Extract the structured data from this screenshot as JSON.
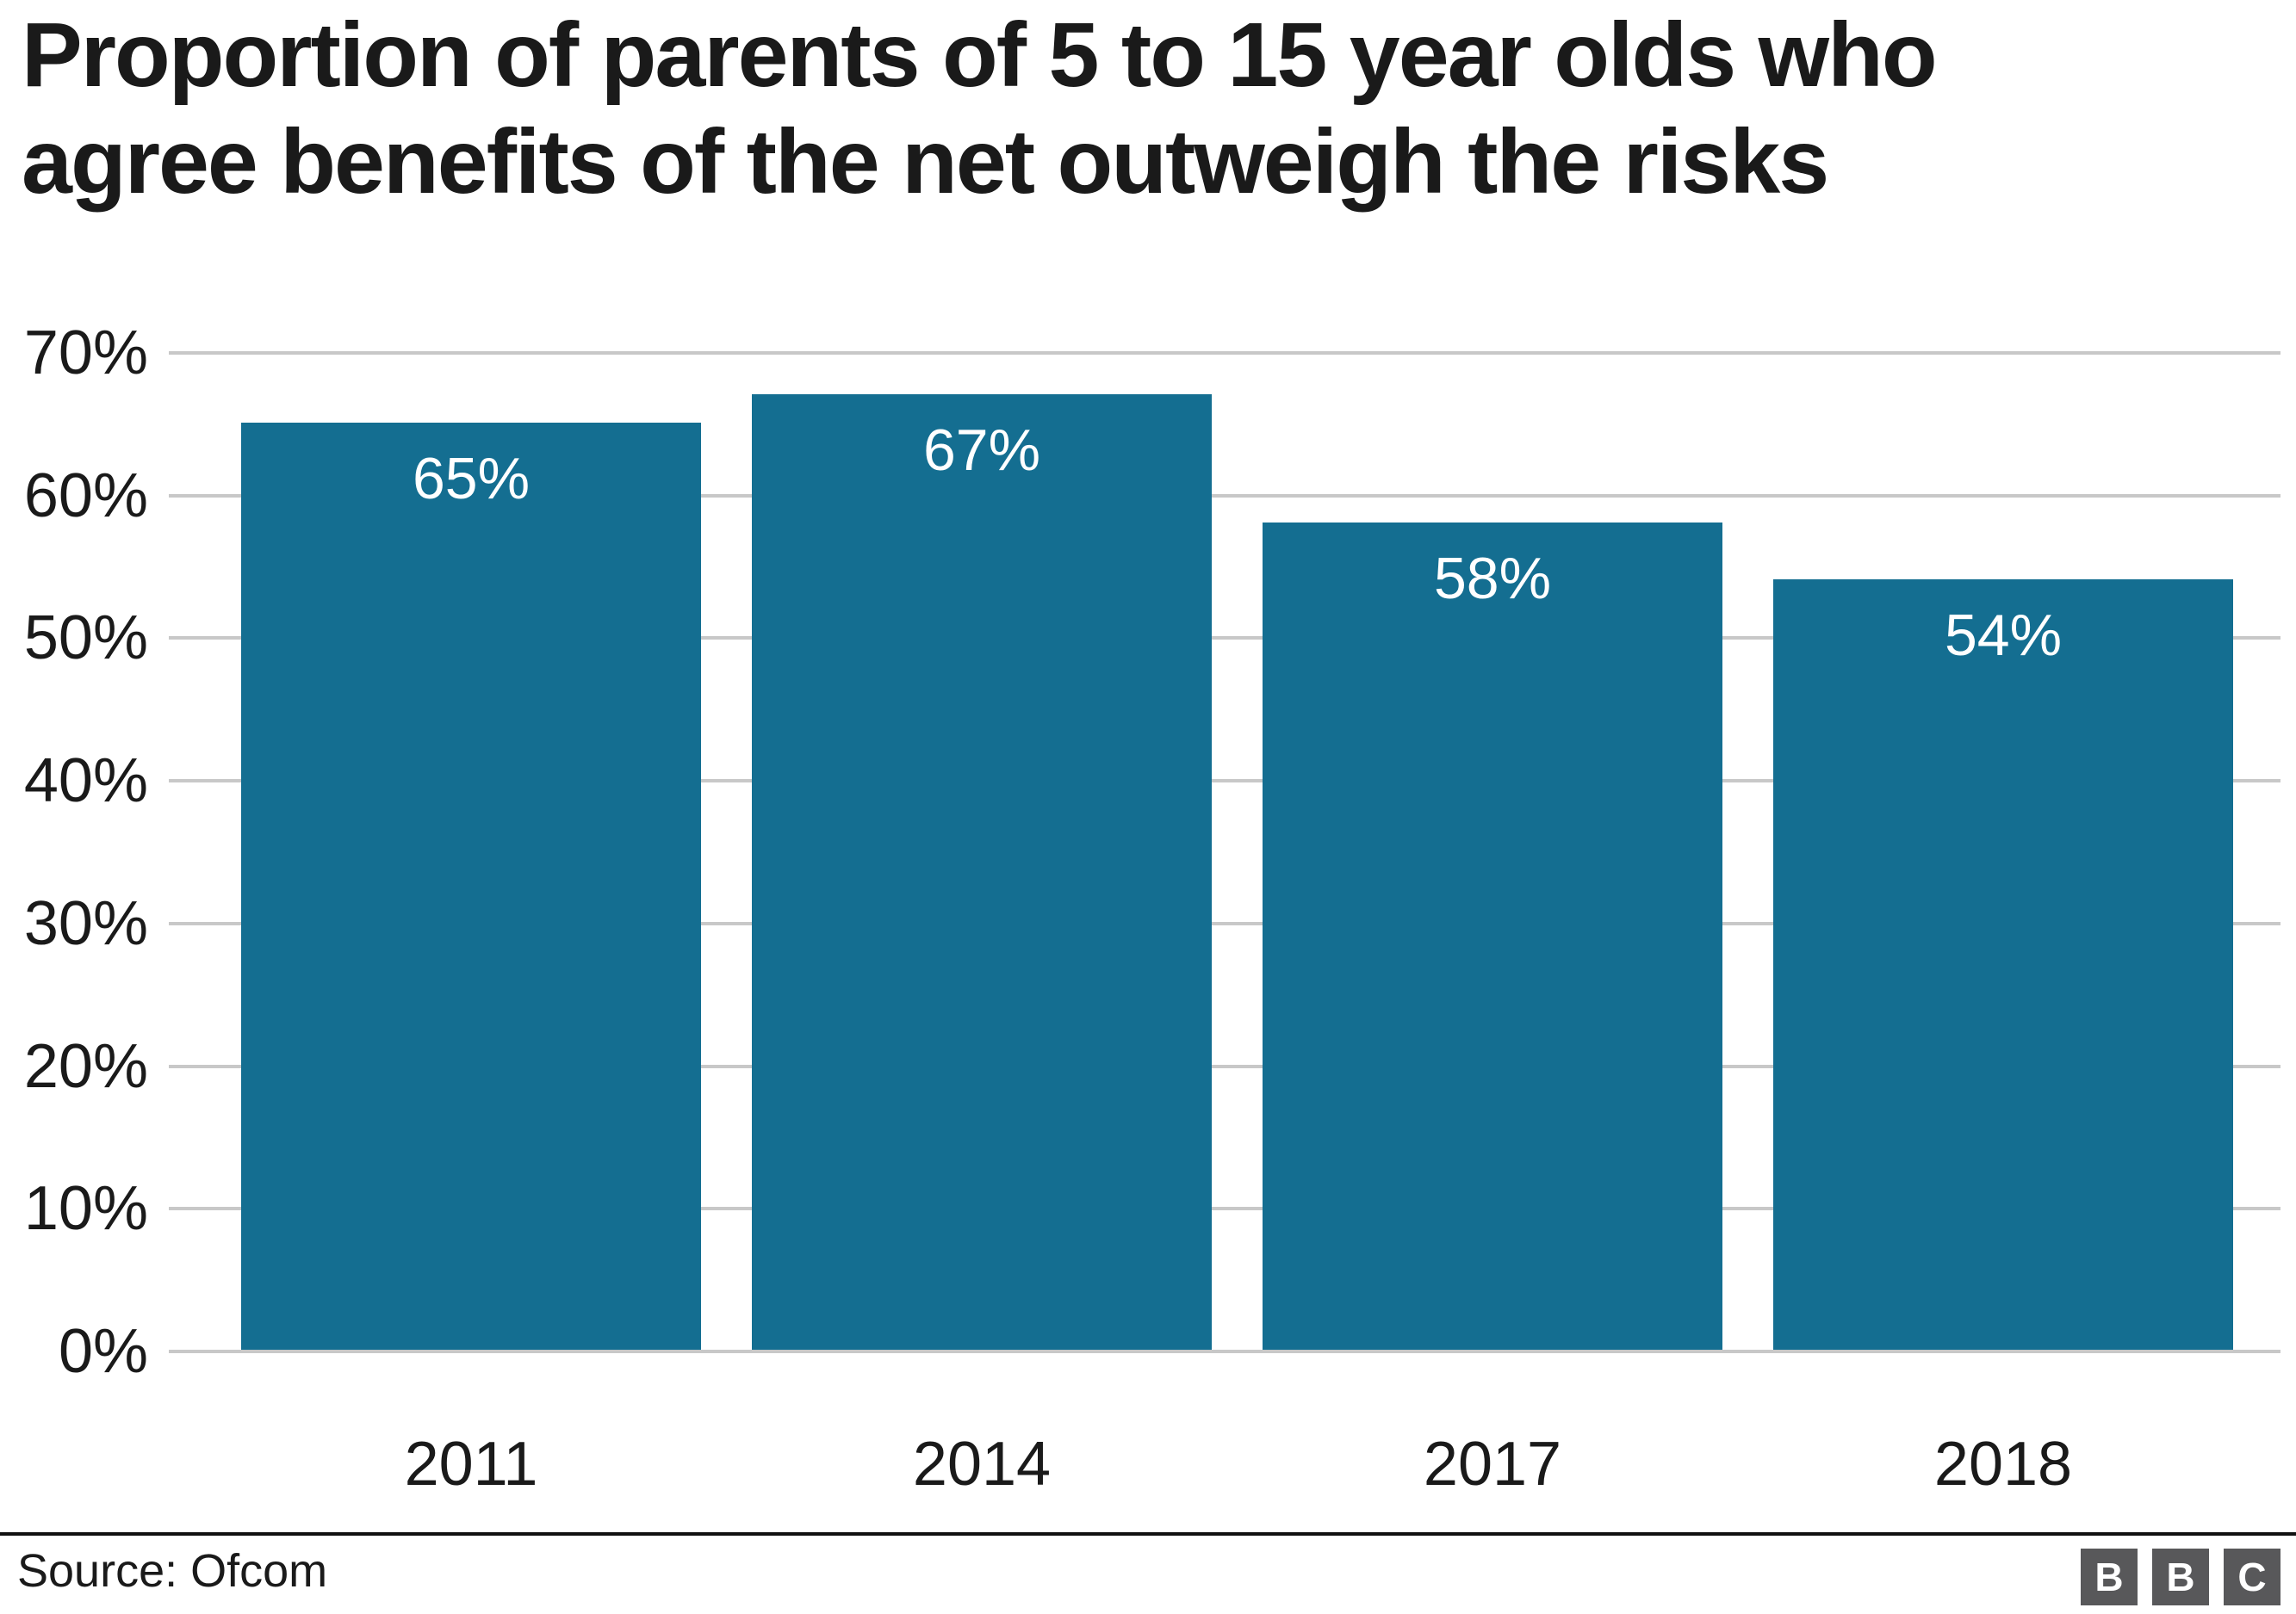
{
  "title": {
    "full": "Proportion of parents of 5 to 15 year olds who agree benefits of the net outweigh the risks",
    "lines": [
      "Proportion of parents of 5 to 15 year olds who",
      "agree benefits of the net outweigh the risks"
    ]
  },
  "source": "Source: Ofcom",
  "logo": {
    "letters": [
      "B",
      "B",
      "C"
    ]
  },
  "colors": {
    "bar": "#146e91",
    "gridline": "#c8c8c8",
    "text": "#1a1a1a",
    "bar_label": "#ffffff",
    "logo_box": "#58585a"
  },
  "chart_data": {
    "type": "bar",
    "title": "Proportion of parents of 5 to 15 year olds who agree benefits of the net outweigh the risks",
    "categories": [
      "2011",
      "2014",
      "2017",
      "2018"
    ],
    "values": [
      65,
      67,
      58,
      54
    ],
    "value_labels": [
      "65%",
      "67%",
      "58%",
      "54%"
    ],
    "xlabel": "",
    "ylabel": "",
    "ylim": [
      0,
      70
    ],
    "y_tick_step": 10,
    "y_tick_labels": [
      "0%",
      "10%",
      "20%",
      "30%",
      "40%",
      "50%",
      "60%",
      "70%"
    ],
    "grid": true,
    "legend": false,
    "bar_label_position": "inside-top",
    "source": "Source: Ofcom"
  }
}
